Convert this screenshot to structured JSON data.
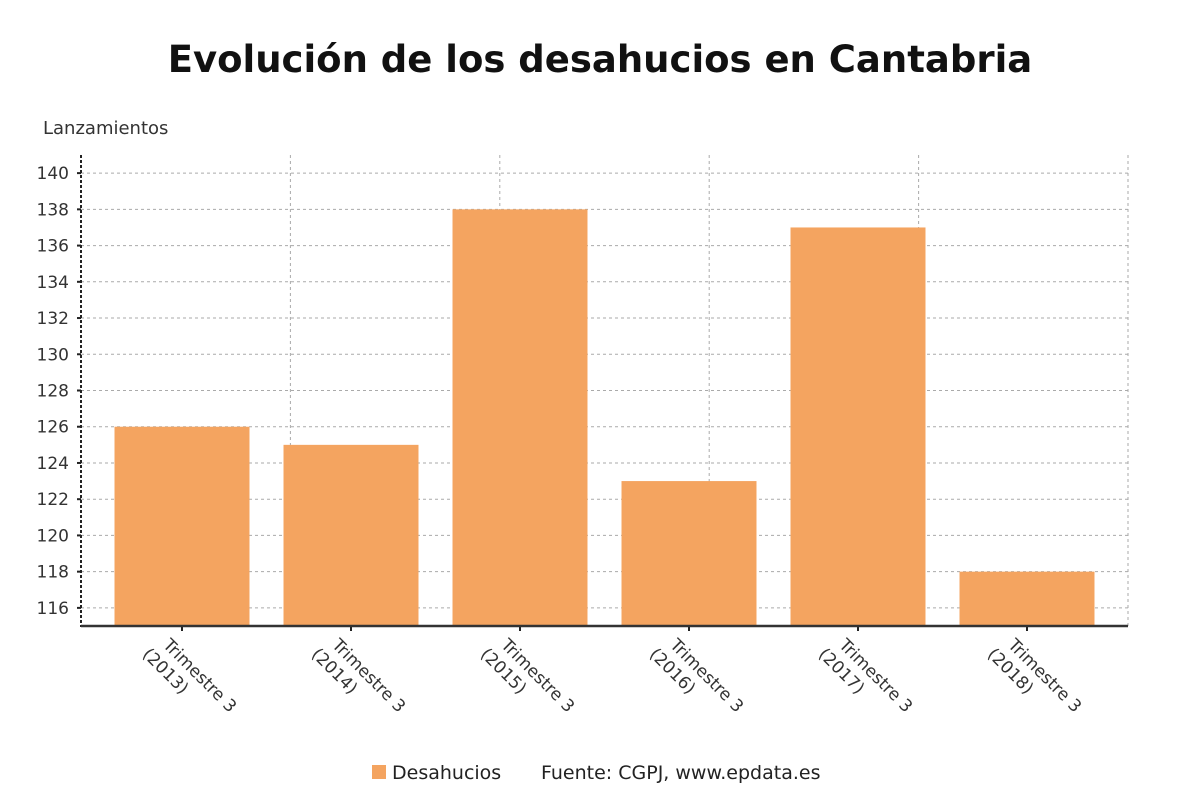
{
  "chart_data": {
    "type": "bar",
    "title": "Evolución de los desahucios en Cantabria",
    "ylabel": "Lanzamientos",
    "xlabel": "",
    "categories": [
      [
        "Trimestre 3",
        "(2013)"
      ],
      [
        "Trimestre 3",
        "(2014)"
      ],
      [
        "Trimestre 3",
        "(2015)"
      ],
      [
        "Trimestre 3",
        "(2016)"
      ],
      [
        "Trimestre 3",
        "(2017)"
      ],
      [
        "Trimestre 3",
        "(2018)"
      ]
    ],
    "series": [
      {
        "name": "Desahucios",
        "values": [
          126,
          125,
          138,
          123,
          137,
          118
        ],
        "color": "#f4a460"
      }
    ],
    "ylim": [
      115,
      141
    ],
    "yticks": [
      116,
      118,
      120,
      122,
      124,
      126,
      128,
      130,
      132,
      134,
      136,
      138,
      140
    ],
    "grid": true,
    "legend_position": "bottom",
    "source": "Fuente: CGPJ, www.epdata.es"
  }
}
